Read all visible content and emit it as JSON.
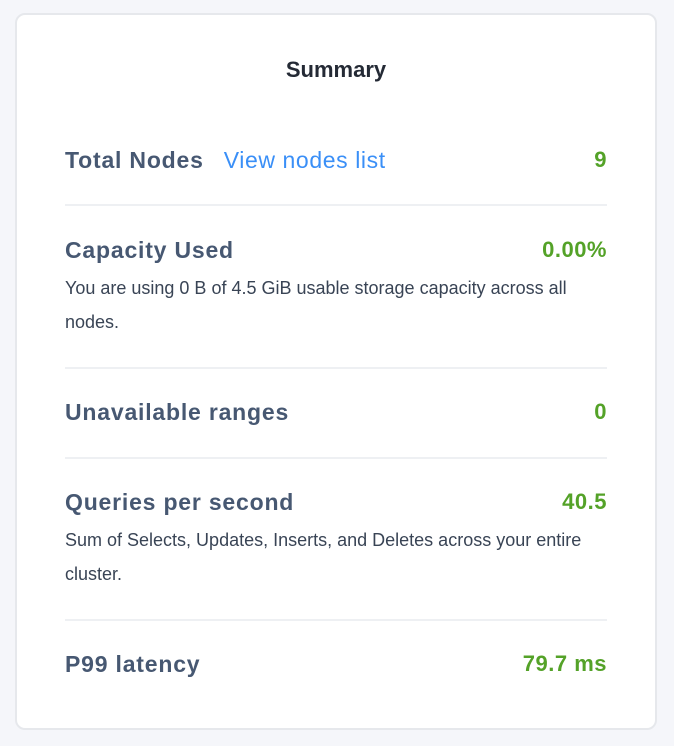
{
  "title": "Summary",
  "rows": [
    {
      "label": "Total Nodes",
      "link": "View nodes list",
      "value": "9"
    },
    {
      "label": "Capacity Used",
      "value": "0.00%",
      "description": "You are using 0 B of 4.5 GiB usable storage capacity across all nodes."
    },
    {
      "label": "Unavailable ranges",
      "value": "0"
    },
    {
      "label": "Queries per second",
      "value": "40.5",
      "description": "Sum of Selects, Updates, Inserts, and Deletes across your entire cluster."
    },
    {
      "label": "P99 latency",
      "value": "79.7 ms"
    }
  ],
  "colors": {
    "value": "#54a228",
    "link": "#3a8ff7",
    "label": "#475872"
  }
}
